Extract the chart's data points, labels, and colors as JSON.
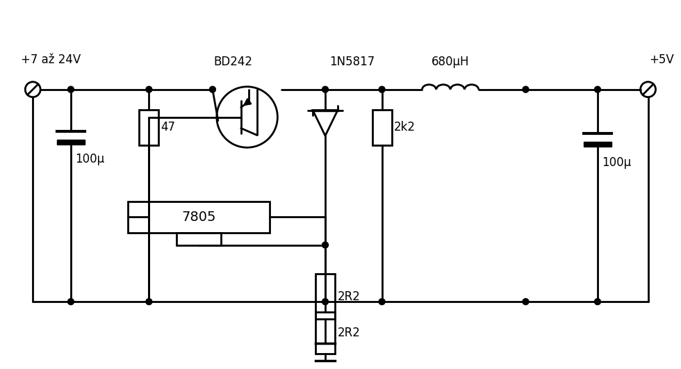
{
  "bg_color": "#ffffff",
  "line_color": "#000000",
  "line_width": 2.0,
  "label_font_size": 12,
  "figsize": [
    9.8,
    5.31
  ],
  "dpi": 100,
  "labels": {
    "input_voltage": "+7 až 24V",
    "output_voltage": "+5V",
    "transistor": "BD242",
    "diode": "1N5817",
    "inductor": "680μH",
    "r47": "47",
    "r100u_left": "100μ",
    "r2k2": "2k2",
    "r2R2": "2R2",
    "r100u_right": "100μ",
    "ic7805": "7805"
  }
}
